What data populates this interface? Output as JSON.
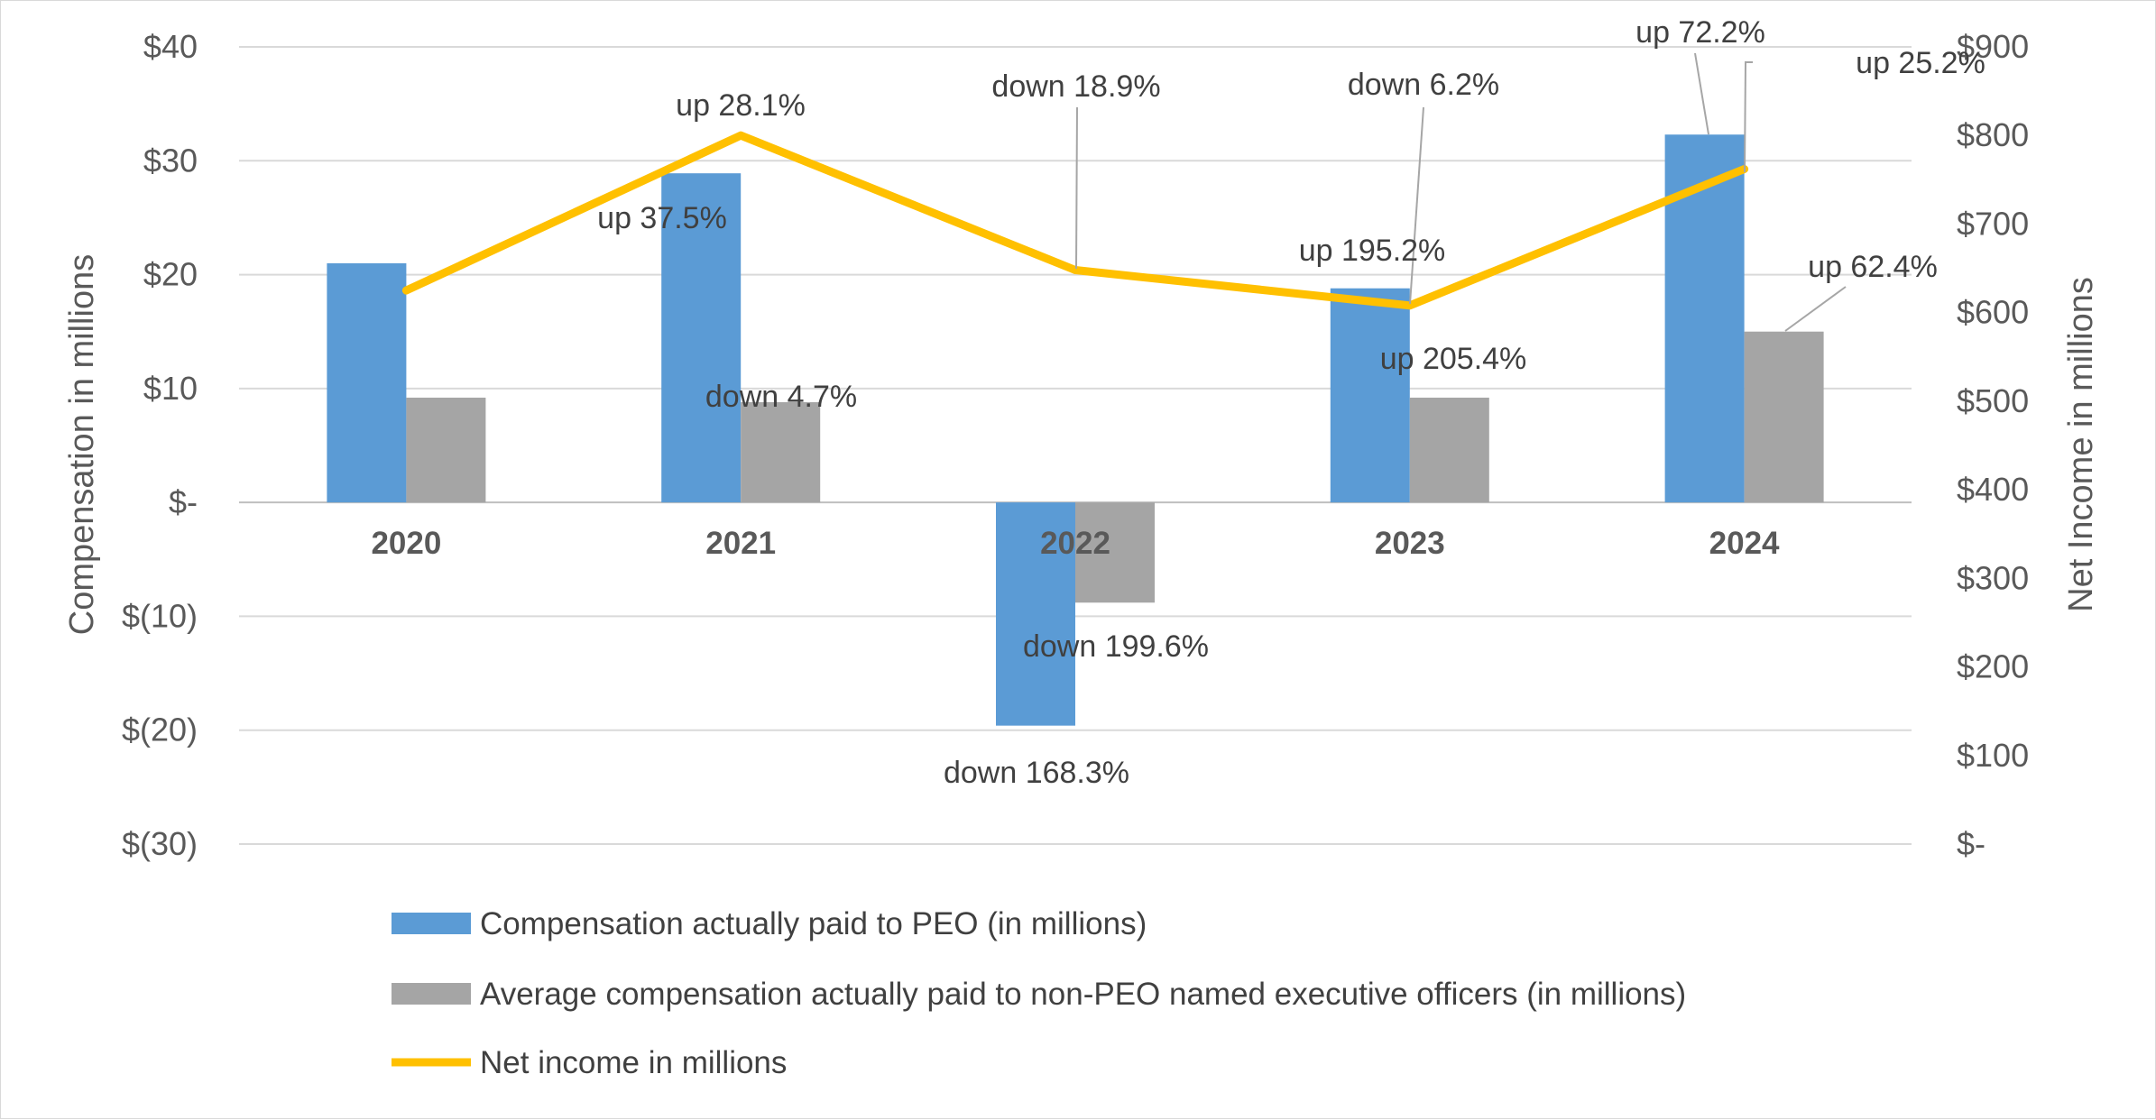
{
  "chart_data": {
    "type": "bar",
    "categories": [
      "2020",
      "2021",
      "2022",
      "2023",
      "2024"
    ],
    "series": [
      {
        "name": "Compensation actually paid to PEO (in millions)",
        "type": "bar",
        "axis": "left",
        "color": "#5b9bd5",
        "values": [
          21.0,
          28.9,
          -19.6,
          18.8,
          32.3
        ]
      },
      {
        "name": "Average compensation actually paid to non-PEO named executive officers (in millions)",
        "type": "bar",
        "axis": "left",
        "color": "#a5a5a5",
        "values": [
          9.2,
          8.8,
          -8.8,
          9.2,
          15.0
        ]
      },
      {
        "name": "Net income in millions",
        "type": "line",
        "axis": "right",
        "color": "#ffc000",
        "values": [
          625,
          800,
          648,
          608,
          762
        ]
      }
    ],
    "left_axis": {
      "title": "Compensation in millions",
      "range": [
        -30,
        40
      ],
      "ticks": [
        {
          "value": 40,
          "label": "$40"
        },
        {
          "value": 30,
          "label": "$30"
        },
        {
          "value": 20,
          "label": "$20"
        },
        {
          "value": 10,
          "label": "$10"
        },
        {
          "value": 0,
          "label": "$-"
        },
        {
          "value": -10,
          "label": "$(10)"
        },
        {
          "value": -20,
          "label": "$(20)"
        },
        {
          "value": -30,
          "label": "$(30)"
        }
      ]
    },
    "right_axis": {
      "title": "Net Income in millions",
      "range": [
        0,
        900
      ],
      "ticks": [
        {
          "value": 900,
          "label": "$900"
        },
        {
          "value": 800,
          "label": "$800"
        },
        {
          "value": 700,
          "label": "$700"
        },
        {
          "value": 600,
          "label": "$600"
        },
        {
          "value": 500,
          "label": "$500"
        },
        {
          "value": 400,
          "label": "$400"
        },
        {
          "value": 300,
          "label": "$300"
        },
        {
          "value": 200,
          "label": "$200"
        },
        {
          "value": 100,
          "label": "$100"
        },
        {
          "value": 0,
          "label": "$-"
        }
      ]
    },
    "grid": true,
    "legend_position": "bottom",
    "annotations": [
      {
        "text": "up 37.5%",
        "category": "2021",
        "series": 0
      },
      {
        "text": "down 4.7%",
        "category": "2021",
        "series": 1
      },
      {
        "text": "up 28.1%",
        "category": "2021",
        "series": 2
      },
      {
        "text": "down 168.3%",
        "category": "2022",
        "series": 0
      },
      {
        "text": "down 199.6%",
        "category": "2022",
        "series": 1
      },
      {
        "text": "down 18.9%",
        "category": "2022",
        "series": 2
      },
      {
        "text": "up 195.2%",
        "category": "2023",
        "series": 0
      },
      {
        "text": "up 205.4%",
        "category": "2023",
        "series": 1
      },
      {
        "text": "down 6.2%",
        "category": "2023",
        "series": 2
      },
      {
        "text": "up 72.2%",
        "category": "2024",
        "series": 0
      },
      {
        "text": "up 62.4%",
        "category": "2024",
        "series": 1
      },
      {
        "text": "up 25.2%",
        "category": "2024",
        "series": 2
      }
    ]
  }
}
